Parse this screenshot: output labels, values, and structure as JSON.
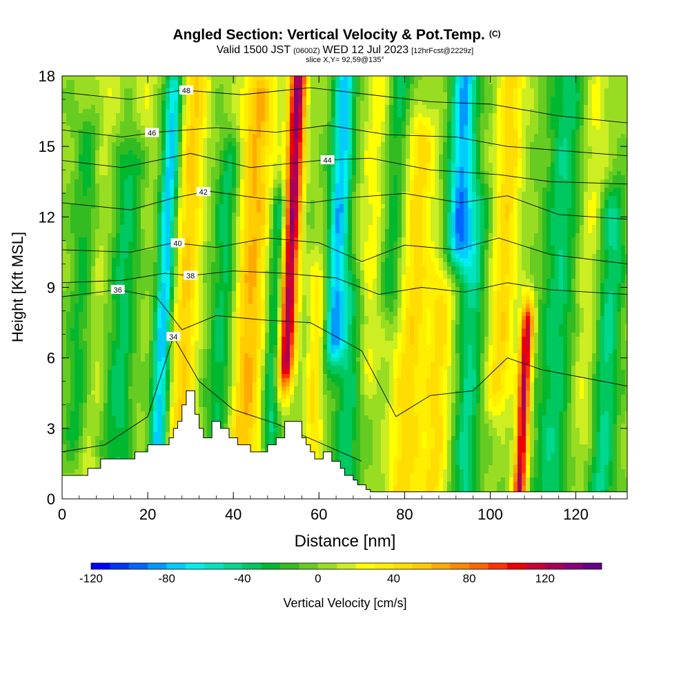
{
  "chart_data": {
    "type": "heatmap",
    "title": "Angled Section: Vertical Velocity & Pot.Temp.",
    "title_suffix": "(C)",
    "subtitle_valid": "Valid 1500 JST",
    "subtitle_utc": "(0600Z)",
    "subtitle_date": "WED 12 Jul 2023",
    "subtitle_fcst": "[12hrFcst@2229z]",
    "slice_label": "slice X,Y= 92,59@135°",
    "xlabel": "Distance [nm]",
    "ylabel": "Height [Kft MSL]",
    "xlim": [
      0,
      132
    ],
    "ylim": [
      0,
      18
    ],
    "xticks": [
      0,
      20,
      40,
      60,
      80,
      100,
      120
    ],
    "yticks": [
      0,
      3,
      6,
      9,
      12,
      15,
      18
    ],
    "colorbar": {
      "label": "Vertical Velocity [cm/s]",
      "range": [
        -120,
        150
      ],
      "step": 10,
      "ticks": [
        -120,
        -80,
        -40,
        0,
        40,
        80,
        120
      ],
      "colors": [
        "#0000ff",
        "#0033ff",
        "#0066ff",
        "#0099ff",
        "#00ccff",
        "#00eeee",
        "#00e5c0",
        "#00d890",
        "#00c860",
        "#00b830",
        "#33bb22",
        "#66cc22",
        "#99dd22",
        "#ccee22",
        "#ffff00",
        "#ffee00",
        "#ffdd00",
        "#ffcc00",
        "#ffaa00",
        "#ff8800",
        "#ff6600",
        "#ff3300",
        "#ee0000",
        "#cc0033",
        "#aa0055",
        "#880077",
        "#660088"
      ]
    },
    "updrafts": [
      {
        "x": 8,
        "top": 18,
        "bottom": 0,
        "width": 3,
        "strength": 18
      },
      {
        "x": 18,
        "top": 18,
        "bottom": 0,
        "width": 3,
        "strength": 15
      },
      {
        "x": 29,
        "top": 18,
        "bottom": 2,
        "width": 3,
        "strength": 50
      },
      {
        "x": 44,
        "top": 17,
        "bottom": 2,
        "width": 4,
        "strength": 60
      },
      {
        "x": 53,
        "top": 18,
        "bottom": 6,
        "width": 2,
        "strength": 130
      },
      {
        "x": 60,
        "top": 9,
        "bottom": 1,
        "width": 2,
        "strength": 40
      },
      {
        "x": 72,
        "top": 18,
        "bottom": 6,
        "width": 3,
        "strength": 25
      },
      {
        "x": 82,
        "top": 15,
        "bottom": 0,
        "width": 4,
        "strength": 45
      },
      {
        "x": 89,
        "top": 9,
        "bottom": 0,
        "width": 3,
        "strength": 40
      },
      {
        "x": 103,
        "top": 18,
        "bottom": 5,
        "width": 3,
        "strength": 45
      },
      {
        "x": 109,
        "top": 7,
        "bottom": 0,
        "width": 1.5,
        "strength": 120
      },
      {
        "x": 123,
        "top": 18,
        "bottom": 3,
        "width": 3,
        "strength": 20
      }
    ],
    "downdrafts": [
      {
        "x": 5,
        "top": 15,
        "bottom": 3,
        "width": 3,
        "strength": -30
      },
      {
        "x": 15,
        "top": 14,
        "bottom": 0,
        "width": 4,
        "strength": -40
      },
      {
        "x": 24,
        "top": 17,
        "bottom": 2,
        "width": 2,
        "strength": -80
      },
      {
        "x": 38,
        "top": 14,
        "bottom": 2,
        "width": 3,
        "strength": -40
      },
      {
        "x": 50,
        "top": 12,
        "bottom": 3,
        "width": 2,
        "strength": -50
      },
      {
        "x": 64,
        "top": 18,
        "bottom": 7,
        "width": 2.5,
        "strength": -80
      },
      {
        "x": 68,
        "top": 8,
        "bottom": 0,
        "width": 3,
        "strength": -40
      },
      {
        "x": 77,
        "top": 18,
        "bottom": 9,
        "width": 3,
        "strength": -35
      },
      {
        "x": 92,
        "top": 18,
        "bottom": 11,
        "width": 3,
        "strength": -85
      },
      {
        "x": 96,
        "top": 12,
        "bottom": 0,
        "width": 3,
        "strength": -45
      },
      {
        "x": 116,
        "top": 18,
        "bottom": 0,
        "width": 4,
        "strength": -40
      },
      {
        "x": 128,
        "top": 12,
        "bottom": 0,
        "width": 3,
        "strength": -45
      }
    ],
    "terrain": {
      "x": [
        0,
        1,
        6,
        9,
        13,
        16,
        17,
        18,
        20,
        22,
        23,
        25,
        26,
        27,
        28,
        29,
        30,
        31,
        32,
        33,
        35,
        37,
        39,
        41,
        44,
        46,
        48,
        50,
        52,
        54,
        56,
        57,
        58,
        59,
        61,
        62,
        63,
        65,
        66,
        68,
        69,
        71,
        72,
        132
      ],
      "h": [
        1,
        1,
        1.3,
        1.7,
        1.7,
        1.7,
        2.0,
        2.0,
        2.3,
        2.3,
        2.3,
        2.6,
        3.0,
        3.3,
        4.0,
        4.6,
        4.6,
        3.6,
        3.0,
        2.6,
        3.3,
        3.0,
        2.6,
        2.3,
        2.0,
        2.0,
        2.3,
        2.6,
        3.3,
        3.3,
        2.6,
        2.3,
        2.0,
        1.7,
        2.0,
        2.0,
        1.6,
        1.3,
        1.0,
        0.8,
        0.6,
        0.4,
        0.3,
        0.3
      ]
    },
    "theta_isolines": [
      {
        "label": "34",
        "label_x": 26,
        "pts": [
          [
            0,
            2.0
          ],
          [
            10,
            2.3
          ],
          [
            20,
            3.5
          ],
          [
            26,
            6.9
          ],
          [
            32,
            5.0
          ],
          [
            40,
            3.8
          ],
          [
            50,
            3.2
          ],
          [
            60,
            2.4
          ],
          [
            70,
            1.6
          ]
        ]
      },
      {
        "label": "36",
        "label_x": 13,
        "pts": [
          [
            0,
            8.6
          ],
          [
            13,
            8.9
          ],
          [
            22,
            8.6
          ],
          [
            28,
            7.2
          ],
          [
            36,
            7.8
          ],
          [
            48,
            7.6
          ],
          [
            58,
            7.5
          ],
          [
            70,
            6.3
          ],
          [
            78,
            3.5
          ],
          [
            86,
            4.4
          ],
          [
            96,
            4.6
          ],
          [
            104,
            6.0
          ],
          [
            112,
            5.5
          ],
          [
            132,
            4.8
          ]
        ]
      },
      {
        "label": "38",
        "label_x": 30,
        "pts": [
          [
            0,
            9.2
          ],
          [
            14,
            9.3
          ],
          [
            24,
            9.6
          ],
          [
            30,
            9.5
          ],
          [
            40,
            9.7
          ],
          [
            52,
            9.6
          ],
          [
            64,
            9.4
          ],
          [
            74,
            8.7
          ],
          [
            84,
            9.0
          ],
          [
            94,
            8.8
          ],
          [
            104,
            9.2
          ],
          [
            114,
            8.9
          ],
          [
            132,
            8.7
          ]
        ]
      },
      {
        "label": "40",
        "label_x": 27,
        "pts": [
          [
            0,
            10.6
          ],
          [
            16,
            10.5
          ],
          [
            26,
            10.9
          ],
          [
            36,
            10.7
          ],
          [
            48,
            11.1
          ],
          [
            60,
            10.9
          ],
          [
            70,
            10.1
          ],
          [
            80,
            10.8
          ],
          [
            92,
            10.6
          ],
          [
            102,
            11.1
          ],
          [
            114,
            10.4
          ],
          [
            132,
            10.0
          ]
        ]
      },
      {
        "label": "42",
        "label_x": 33,
        "pts": [
          [
            0,
            12.6
          ],
          [
            16,
            12.3
          ],
          [
            26,
            12.8
          ],
          [
            34,
            13.1
          ],
          [
            46,
            12.8
          ],
          [
            58,
            12.6
          ],
          [
            66,
            12.8
          ],
          [
            80,
            13.0
          ],
          [
            93,
            12.6
          ],
          [
            104,
            12.9
          ],
          [
            116,
            12.1
          ],
          [
            132,
            11.9
          ]
        ]
      },
      {
        "label": "44",
        "label_x": 62,
        "pts": [
          [
            0,
            14.4
          ],
          [
            14,
            14.1
          ],
          [
            30,
            14.7
          ],
          [
            44,
            14.1
          ],
          [
            60,
            14.4
          ],
          [
            72,
            14.5
          ],
          [
            86,
            14.0
          ],
          [
            102,
            13.8
          ],
          [
            114,
            13.5
          ],
          [
            132,
            13.4
          ]
        ]
      },
      {
        "label": "46",
        "label_x": 21,
        "pts": [
          [
            0,
            15.7
          ],
          [
            14,
            15.4
          ],
          [
            22,
            15.6
          ],
          [
            36,
            15.8
          ],
          [
            50,
            15.6
          ],
          [
            62,
            15.9
          ],
          [
            76,
            15.5
          ],
          [
            92,
            15.4
          ],
          [
            104,
            15.0
          ],
          [
            132,
            14.6
          ]
        ]
      },
      {
        "label": "48",
        "label_x": 29,
        "pts": [
          [
            0,
            17.3
          ],
          [
            16,
            17.0
          ],
          [
            28,
            17.4
          ],
          [
            42,
            17.2
          ],
          [
            58,
            17.5
          ],
          [
            72,
            17.2
          ],
          [
            86,
            16.9
          ],
          [
            100,
            16.8
          ],
          [
            116,
            16.3
          ],
          [
            132,
            16.0
          ]
        ]
      }
    ]
  }
}
